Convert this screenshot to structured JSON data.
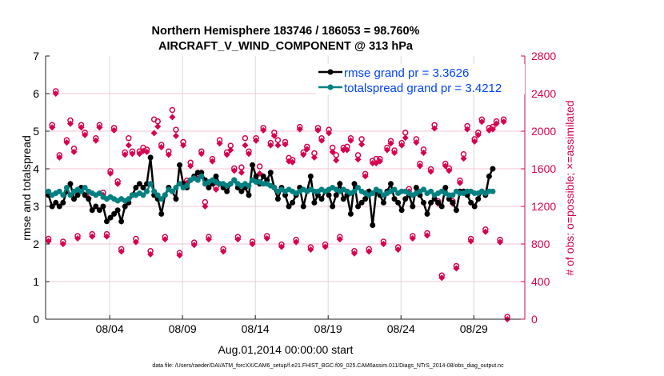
{
  "chart_data": {
    "type": "line",
    "title": [
      "Northern Hemisphere 183746 / 186053 = 98.760%",
      "AIRCRAFT_V_WIND_COMPONENT @ 313 hPa"
    ],
    "xlabel": "Aug.01,2014 00:00:00 start",
    "ylabel": "rmse and totalspread",
    "y2label": "# of obs: o=possible; ×=assimilated",
    "footer": "data file: /Users/raeder/DAI/ATM_forcXX/CAM6_setup/f.e21.FHIST_BGC.f09_025.CAM6assim.011/Diags_NTrS_2014-08/obs_diag_output.nc",
    "xlim": [
      0.6,
      33.5
    ],
    "x_start": 0.8,
    "x_step": 0.25,
    "xticks": [
      {
        "value": 5,
        "label": "08/04"
      },
      {
        "value": 10,
        "label": "08/09"
      },
      {
        "value": 15,
        "label": "08/14"
      },
      {
        "value": 20,
        "label": "08/19"
      },
      {
        "value": 25,
        "label": "08/24"
      },
      {
        "value": 30,
        "label": "08/29"
      }
    ],
    "ylim": [
      0,
      7
    ],
    "yticks": [
      "0",
      "1",
      "2",
      "3",
      "4",
      "5",
      "6",
      "7"
    ],
    "y2lim": [
      0,
      2800
    ],
    "y2ticks": [
      "0",
      "400",
      "800",
      "1200",
      "1600",
      "2000",
      "2400",
      "2800"
    ],
    "colors": {
      "rmse": "#000000",
      "spread": "#008080",
      "obs": "#d6004f",
      "legend_text": "#0044ff",
      "grid_h": "#f4c6d6",
      "grid_v": "#d8d8d8"
    },
    "series": [
      {
        "name": "rmse grand pr = 3.3626",
        "values": [
          3.3,
          3.0,
          3.1,
          3.0,
          3.1,
          3.4,
          3.6,
          3.2,
          3.3,
          3.5,
          3.3,
          3.2,
          2.9,
          3.0,
          2.9,
          3.0,
          2.6,
          2.7,
          2.8,
          2.9,
          2.6,
          3.0,
          3.1,
          3.3,
          3.5,
          3.6,
          3.5,
          3.6,
          4.3,
          3.3,
          3.2,
          2.8,
          3.3,
          3.5,
          3.4,
          3.2,
          4.1,
          3.6,
          3.5,
          3.7,
          3.8,
          3.9,
          3.9,
          3.7,
          3.5,
          3.6,
          3.8,
          3.6,
          3.5,
          3.4,
          3.6,
          3.7,
          3.5,
          3.4,
          3.5,
          3.3,
          4.1,
          3.8,
          3.6,
          3.8,
          3.7,
          3.9,
          3.5,
          3.2,
          3.5,
          3.3,
          3.0,
          3.1,
          3.3,
          3.5,
          3.0,
          3.4,
          3.8,
          3.1,
          3.3,
          3.2,
          3.4,
          3.3,
          3.0,
          3.3,
          3.6,
          3.2,
          3.3,
          2.8,
          3.6,
          3.0,
          3.1,
          3.2,
          3.4,
          2.5,
          3.4,
          3.3,
          3.1,
          3.4,
          3.6,
          3.2,
          3.1,
          2.9,
          3.2,
          3.3,
          3.0,
          3.5,
          3.3,
          3.1,
          2.8,
          3.1,
          3.2,
          3.1,
          3.0,
          3.5,
          3.2,
          3.1,
          2.9,
          3.4,
          3.4,
          3.3,
          3.1,
          3.0,
          3.2,
          3.4,
          3.3,
          3.8,
          4.0
        ]
      },
      {
        "name": "totalspread grand pr = 3.4212",
        "values": [
          3.4,
          3.3,
          3.35,
          3.4,
          3.3,
          3.5,
          3.3,
          3.4,
          3.45,
          3.4,
          3.5,
          3.4,
          3.35,
          3.3,
          3.35,
          3.25,
          3.2,
          3.25,
          3.2,
          3.15,
          3.2,
          3.15,
          3.2,
          3.3,
          3.3,
          3.35,
          3.3,
          3.4,
          3.6,
          3.4,
          3.3,
          3.2,
          3.3,
          3.45,
          3.4,
          3.5,
          3.6,
          3.5,
          3.55,
          3.7,
          3.75,
          3.7,
          3.8,
          3.6,
          3.65,
          3.7,
          3.65,
          3.6,
          3.6,
          3.55,
          3.6,
          3.7,
          3.6,
          3.55,
          3.6,
          3.55,
          3.7,
          3.65,
          3.65,
          3.6,
          3.6,
          3.55,
          3.5,
          3.4,
          3.45,
          3.4,
          3.45,
          3.4,
          3.35,
          3.4,
          3.45,
          3.4,
          3.45,
          3.4,
          3.4,
          3.45,
          3.4,
          3.45,
          3.5,
          3.45,
          3.4,
          3.45,
          3.4,
          3.35,
          3.4,
          3.5,
          3.4,
          3.35,
          3.3,
          3.35,
          3.45,
          3.4,
          3.3,
          3.35,
          3.4,
          3.45,
          3.35,
          3.4,
          3.4,
          3.35,
          3.3,
          3.35,
          3.4,
          3.45,
          3.35,
          3.4,
          3.3,
          3.35,
          3.4,
          3.35,
          3.3,
          3.3,
          3.4,
          3.35,
          3.35,
          3.4,
          3.4,
          3.35,
          3.35,
          3.4,
          3.35,
          3.4,
          3.4
        ]
      },
      {
        "name": "num_assimilated",
        "values": [
          830,
          2040,
          2400,
          1720,
          800,
          1880,
          2080,
          1780,
          860,
          2040,
          1960,
          1290,
          880,
          1900,
          2040,
          1320,
          880,
          1550,
          2010,
          1440,
          720,
          1750,
          1850,
          1760,
          820,
          1760,
          1790,
          1780,
          690,
          1980,
          2050,
          1830,
          850,
          1750,
          2150,
          1950,
          680,
          1850,
          1450,
          1630,
          790,
          1500,
          1760,
          1200,
          850,
          1680,
          1380,
          1870,
          720,
          1750,
          1800,
          1580,
          850,
          1560,
          1850,
          1760,
          800,
          1900,
          1550,
          2010,
          860,
          1850,
          1950,
          1850,
          770,
          1860,
          1680,
          1670,
          820,
          2020,
          1750,
          1810,
          740,
          1720,
          2010,
          1900,
          770,
          1980,
          1780,
          1690,
          850,
          1800,
          1800,
          1900,
          700,
          1700,
          1860,
          1520,
          720,
          1660,
          1660,
          1680,
          800,
          1800,
          1870,
          1770,
          740,
          1850,
          1930,
          1360,
          860,
          1880,
          1630,
          1770,
          890,
          1570,
          2030,
          1230,
          440,
          1630,
          1580,
          1230,
          540,
          1450,
          1710,
          2020,
          830,
          1890,
          1960,
          2100,
          930,
          2010,
          2020,
          2080,
          820,
          2100,
          0
        ]
      },
      {
        "name": "num_possible",
        "values": [
          830,
          2040,
          2400,
          1720,
          800,
          1880,
          2090,
          1790,
          860,
          2040,
          1960,
          1330,
          880,
          1900,
          2040,
          1320,
          880,
          1550,
          2010,
          1440,
          720,
          1750,
          1900,
          1760,
          830,
          1760,
          1800,
          1780,
          700,
          2100,
          2080,
          1830,
          850,
          1760,
          2200,
          1990,
          680,
          1860,
          1450,
          1640,
          790,
          1500,
          1760,
          1220,
          850,
          1680,
          1380,
          1880,
          720,
          1750,
          1820,
          1580,
          850,
          1590,
          1900,
          1760,
          800,
          1900,
          1600,
          2010,
          860,
          1850,
          1960,
          1880,
          770,
          1860,
          1690,
          1670,
          820,
          2020,
          1750,
          1810,
          740,
          1740,
          2010,
          1900,
          770,
          1990,
          1800,
          1720,
          850,
          1800,
          1810,
          1900,
          700,
          1720,
          1890,
          1520,
          720,
          1660,
          1680,
          1680,
          800,
          1800,
          1870,
          1770,
          740,
          1850,
          1960,
          1360,
          860,
          1890,
          1630,
          1780,
          890,
          1570,
          2040,
          1230,
          440,
          1630,
          1580,
          1230,
          540,
          1450,
          1730,
          2030,
          830,
          1890,
          1960,
          2100,
          930,
          2010,
          2020,
          2080,
          820,
          2100,
          0
        ]
      }
    ],
    "legend_placement": "top-right",
    "grid": true
  }
}
